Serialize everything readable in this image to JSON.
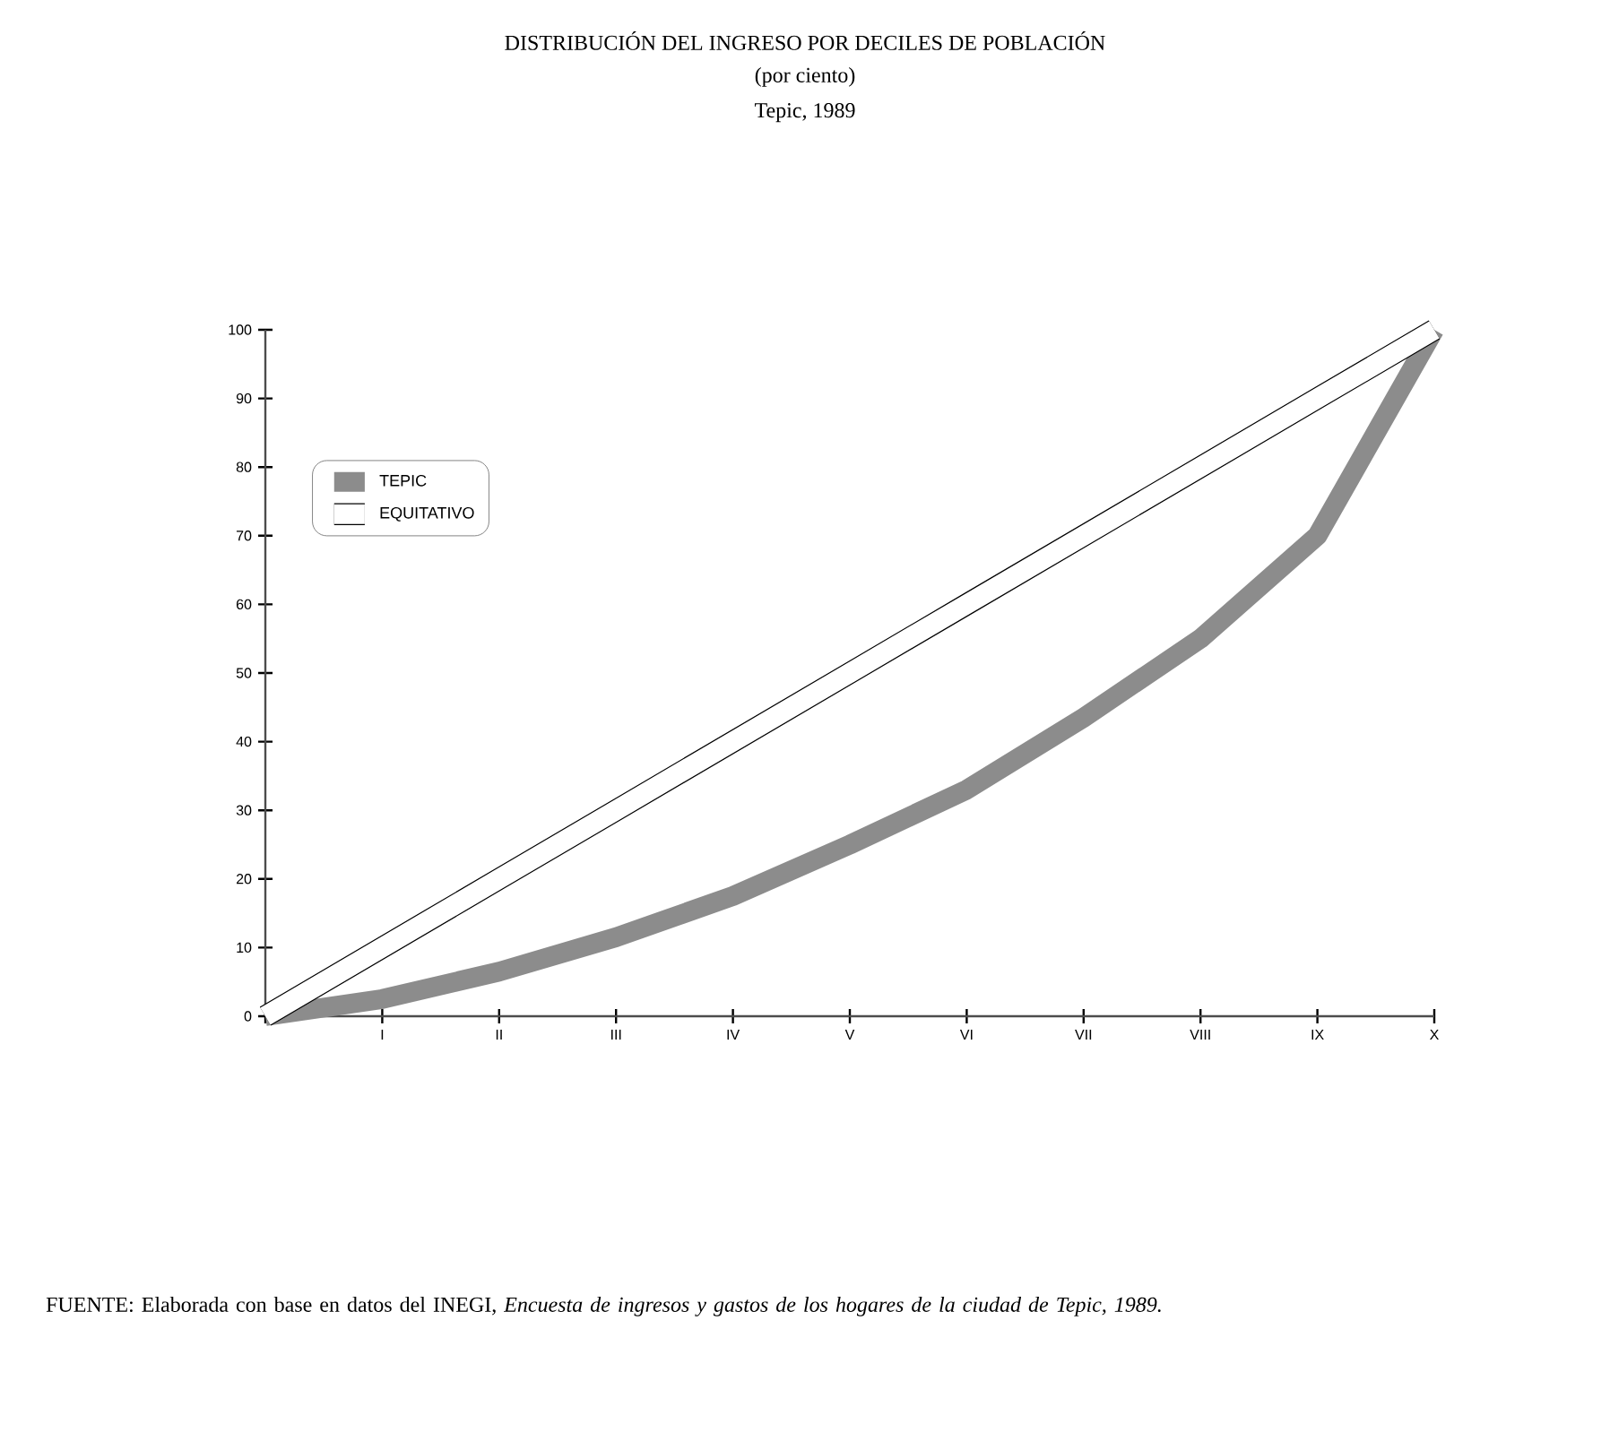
{
  "chart_data": {
    "type": "line",
    "title": "DISTRIBUCIÓN DEL INGRESO POR DECILES DE POBLACIÓN",
    "subtitle": "(por ciento)",
    "annotations": [
      "Tepic, 1989",
      "FUENTE: Elaborada con base en datos del INEGI, *Encuesta de ingresos y gastos de los hogares de la ciudad de Tepic, 1989.*"
    ],
    "categories": [
      null,
      "I",
      "II",
      "III",
      "IV",
      "V",
      "VI",
      "VII",
      "VIII",
      "IX",
      "X"
    ],
    "series": [
      {
        "name": "TEPIC",
        "color": "#8c8c8c",
        "values": [
          0,
          2.5,
          6.5,
          11.5,
          17.5,
          25,
          33,
          43.5,
          55,
          70,
          100
        ]
      },
      {
        "name": "EQUITATIVO",
        "color": "#ffffff",
        "values": [
          0,
          10,
          20,
          30,
          40,
          50,
          60,
          70,
          80,
          90,
          100
        ]
      }
    ],
    "ylim": [
      0,
      100
    ],
    "yticks": [
      0,
      10,
      20,
      30,
      40,
      50,
      60,
      70,
      80,
      90,
      100
    ],
    "grid": false,
    "legend": "top left",
    "marker": "none",
    "line_style": "solid"
  }
}
